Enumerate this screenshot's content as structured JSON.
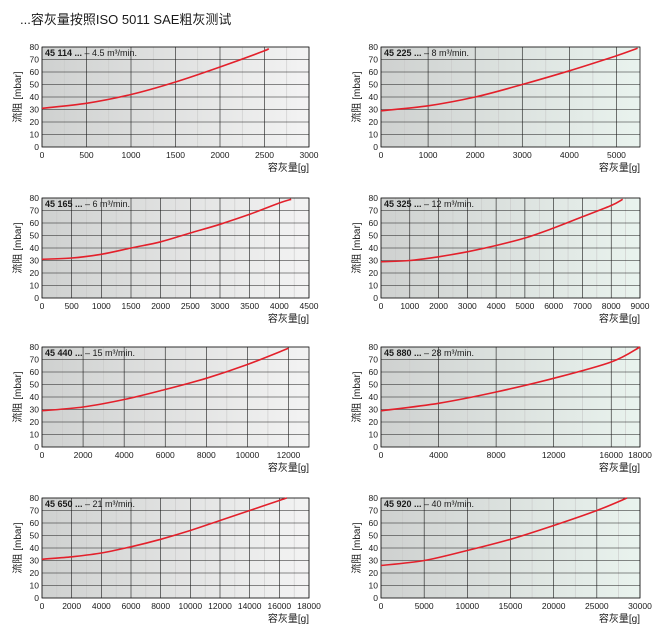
{
  "title": "...容灰量按照ISO 5011 SAE粗灰测试",
  "colors": {
    "curve": "#e3202b",
    "grid_major": "#1a1a1a",
    "grid_minor": "#c8c8c8",
    "bg_left": "#cfd1d0",
    "bg_right_gray": "#f3f3f3",
    "bg_right_green": "#e9f3ee"
  },
  "chart_data": [
    {
      "type": "line",
      "model": "45 114 ...",
      "flow": "– 4.5 m³/min.",
      "xlabel": "容灰量[g]",
      "ylabel": "流阻 [mbar]",
      "xlim": [
        0,
        3000
      ],
      "ylim": [
        0,
        80
      ],
      "xticks": [
        0,
        500,
        1000,
        1500,
        2000,
        2500,
        3000
      ],
      "yticks": [
        0,
        10,
        20,
        30,
        40,
        50,
        60,
        70,
        80
      ],
      "x": [
        0,
        500,
        1000,
        1500,
        2000,
        2500,
        2520
      ],
      "y": [
        31,
        35,
        42,
        52,
        64,
        77,
        78
      ]
    },
    {
      "type": "line",
      "model": "45 225 ...",
      "flow": "– 8 m³/min.",
      "xlabel": "容灰量[g]",
      "ylabel": "流阻 [mbar]",
      "xlim": [
        0,
        5500
      ],
      "ylim": [
        0,
        80
      ],
      "xticks": [
        0,
        1000,
        2000,
        3000,
        4000,
        5000
      ],
      "yticks": [
        0,
        10,
        20,
        30,
        40,
        50,
        60,
        70,
        80
      ],
      "x": [
        0,
        1000,
        2000,
        3000,
        4000,
        5000,
        5450
      ],
      "y": [
        29,
        33,
        40,
        50,
        61,
        73,
        79
      ]
    },
    {
      "type": "line",
      "model": "45 165 ...",
      "flow": "– 6 m³/min.",
      "xlabel": "容灰量[g]",
      "ylabel": "流阻 [mbar]",
      "xlim": [
        0,
        4500
      ],
      "ylim": [
        0,
        80
      ],
      "xticks": [
        0,
        500,
        1000,
        1500,
        2000,
        2500,
        3000,
        3500,
        4000,
        4500
      ],
      "yticks": [
        0,
        10,
        20,
        30,
        40,
        50,
        60,
        70,
        80
      ],
      "x": [
        0,
        500,
        1000,
        1500,
        2000,
        2500,
        3000,
        3500,
        4000,
        4200
      ],
      "y": [
        31,
        32,
        35,
        40,
        45,
        52,
        59,
        67,
        76,
        79
      ]
    },
    {
      "type": "line",
      "model": "45 325 ...",
      "flow": "– 12 m³/min.",
      "xlabel": "容灰量[g]",
      "ylabel": "流阻 [mbar]",
      "xlim": [
        0,
        9000
      ],
      "ylim": [
        0,
        80
      ],
      "xticks": [
        0,
        1000,
        2000,
        3000,
        4000,
        5000,
        6000,
        7000,
        8000,
        9000
      ],
      "yticks": [
        0,
        10,
        20,
        30,
        40,
        50,
        60,
        70,
        80
      ],
      "x": [
        0,
        1000,
        2000,
        3000,
        4000,
        5000,
        6000,
        7000,
        8000,
        8400
      ],
      "y": [
        29,
        30,
        33,
        37,
        42,
        48,
        56,
        65,
        74,
        79
      ]
    },
    {
      "type": "line",
      "model": "45 440 ...",
      "flow": "– 15 m³/min.",
      "xlabel": "容灰量[g]",
      "ylabel": "流阻 [mbar]",
      "xlim": [
        0,
        13000
      ],
      "ylim": [
        0,
        80
      ],
      "xticks": [
        0,
        2000,
        4000,
        6000,
        8000,
        10000,
        12000
      ],
      "yticks": [
        0,
        10,
        20,
        30,
        40,
        50,
        60,
        70,
        80
      ],
      "x": [
        0,
        2000,
        4000,
        6000,
        8000,
        10000,
        12000
      ],
      "y": [
        29,
        32,
        38,
        46,
        55,
        66,
        79
      ]
    },
    {
      "type": "line",
      "model": "45 880 ...",
      "flow": "– 28 m³/min.",
      "xlabel": "容灰量[g]",
      "ylabel": "流阻 [mbar]",
      "xlim": [
        0,
        18000
      ],
      "ylim": [
        0,
        80
      ],
      "xticks": [
        0,
        4000,
        8000,
        12000,
        16000,
        18000
      ],
      "yticks": [
        0,
        10,
        20,
        30,
        40,
        50,
        60,
        70,
        80
      ],
      "x": [
        0,
        4000,
        8000,
        12000,
        16000,
        18000
      ],
      "y": [
        29,
        35,
        44,
        55,
        68,
        80
      ]
    },
    {
      "type": "line",
      "model": "45 650 ...",
      "flow": "– 21 m³/min.",
      "xlabel": "容灰量[g]",
      "ylabel": "流阻 [mbar]",
      "xlim": [
        0,
        18000
      ],
      "ylim": [
        0,
        80
      ],
      "xticks": [
        0,
        2000,
        4000,
        6000,
        8000,
        10000,
        12000,
        14000,
        16000,
        18000
      ],
      "yticks": [
        0,
        10,
        20,
        30,
        40,
        50,
        60,
        70,
        80
      ],
      "x": [
        0,
        2000,
        4000,
        6000,
        8000,
        10000,
        12000,
        14000,
        16000,
        16500
      ],
      "y": [
        31,
        33,
        36,
        41,
        47,
        54,
        62,
        70,
        78,
        80
      ]
    },
    {
      "type": "line",
      "model": "45 920 ...",
      "flow": "– 40 m³/min.",
      "xlabel": "容灰量[g]",
      "ylabel": "流阻 [mbar]",
      "xlim": [
        0,
        30000
      ],
      "ylim": [
        0,
        80
      ],
      "xticks": [
        0,
        5000,
        10000,
        15000,
        20000,
        25000,
        30000
      ],
      "yticks": [
        0,
        10,
        20,
        30,
        40,
        50,
        60,
        70,
        80
      ],
      "x": [
        0,
        5000,
        10000,
        15000,
        20000,
        25000,
        28500
      ],
      "y": [
        26,
        30,
        38,
        47,
        58,
        70,
        80
      ]
    }
  ]
}
